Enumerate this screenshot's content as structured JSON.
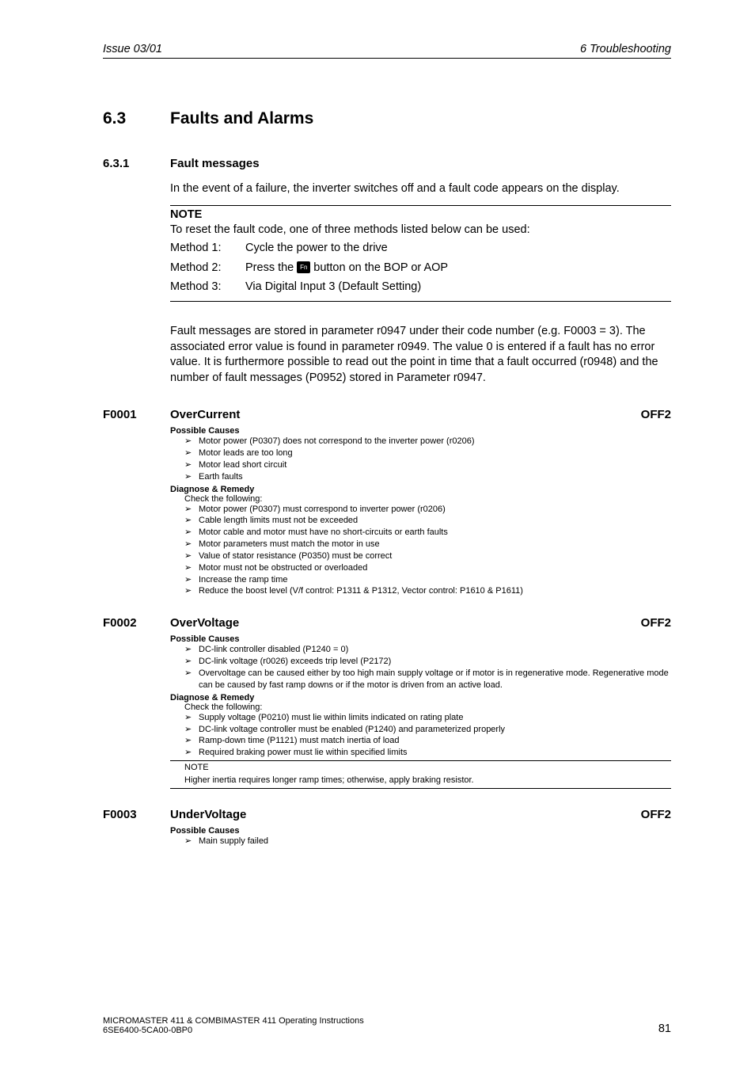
{
  "header": {
    "left": "Issue 03/01",
    "right": "6  Troubleshooting"
  },
  "section": {
    "num": "6.3",
    "title": "Faults and Alarms"
  },
  "subsection": {
    "num": "6.3.1",
    "title": "Fault messages"
  },
  "intro": "In the event of a failure, the inverter switches off and a fault code appears on the display.",
  "note": {
    "label": "NOTE",
    "text": "To reset the fault code, one of three methods listed below can be used:",
    "methods": [
      {
        "label": "Method 1:",
        "text": "Cycle the power to the drive"
      },
      {
        "label": "Method 2:",
        "pre": "Press the ",
        "icon": "Fn",
        "post": " button on the BOP or AOP"
      },
      {
        "label": "Method 3:",
        "text": "Via Digital Input 3 (Default Setting)"
      }
    ]
  },
  "storage": "Fault messages are stored in parameter r0947 under their code number (e.g. F0003 = 3). The associated error value is found in parameter r0949. The value 0 is entered if a fault has no error value. It is furthermore possible to read out the point in time that a fault occurred (r0948) and the number of fault messages (P0952) stored in Parameter r0947.",
  "faults": [
    {
      "code": "F0001",
      "name": "OverCurrent",
      "off": "OFF2",
      "causes_heading": "Possible Causes",
      "causes": [
        "Motor power (P0307) does not correspond to the inverter power (r0206)",
        "Motor leads are too long",
        "Motor lead short circuit",
        "Earth faults"
      ],
      "remedy_heading": "Diagnose & Remedy",
      "remedy_sub": "Check the following:",
      "remedies": [
        "Motor power (P0307) must correspond to inverter power (r0206)",
        "Cable length limits must not be exceeded",
        "Motor cable and motor must have no short-circuits or earth faults",
        "Motor parameters must match the motor in use",
        "Value of stator resistance (P0350) must be correct",
        "Motor must not be obstructed or overloaded",
        "Increase the ramp time",
        "Reduce the boost level (V/f control: P1311 & P1312, Vector control: P1610 & P1611)"
      ]
    },
    {
      "code": "F0002",
      "name": "OverVoltage",
      "off": "OFF2",
      "causes_heading": "Possible Causes",
      "causes": [
        "DC-link controller disabled (P1240 = 0)",
        "DC-link voltage (r0026) exceeds trip level (P2172)",
        "Overvoltage can be caused either by too high main supply voltage or if motor is in regenerative mode. Regenerative mode can be caused by fast ramp downs or if the motor is driven from an active load."
      ],
      "remedy_heading": "Diagnose & Remedy",
      "remedy_sub": "Check the following:",
      "remedies": [
        "Supply voltage (P0210) must lie within limits indicated on rating plate",
        "DC-link voltage controller must be enabled (P1240) and parameterized properly",
        "Ramp-down time (P1121) must match inertia of load",
        "Required braking power must lie within specified limits"
      ],
      "inner_note_label": "NOTE",
      "inner_note_text": "Higher inertia requires longer ramp times; otherwise, apply braking resistor."
    },
    {
      "code": "F0003",
      "name": "UnderVoltage",
      "off": "OFF2",
      "causes_heading": "Possible Causes",
      "causes": [
        "Main supply failed"
      ]
    }
  ],
  "bullet_marker": "➢",
  "footer": {
    "line1": "MICROMASTER 411 & COMBIMASTER 411    Operating Instructions",
    "line2": "6SE6400-5CA00-0BP0",
    "page": "81"
  }
}
